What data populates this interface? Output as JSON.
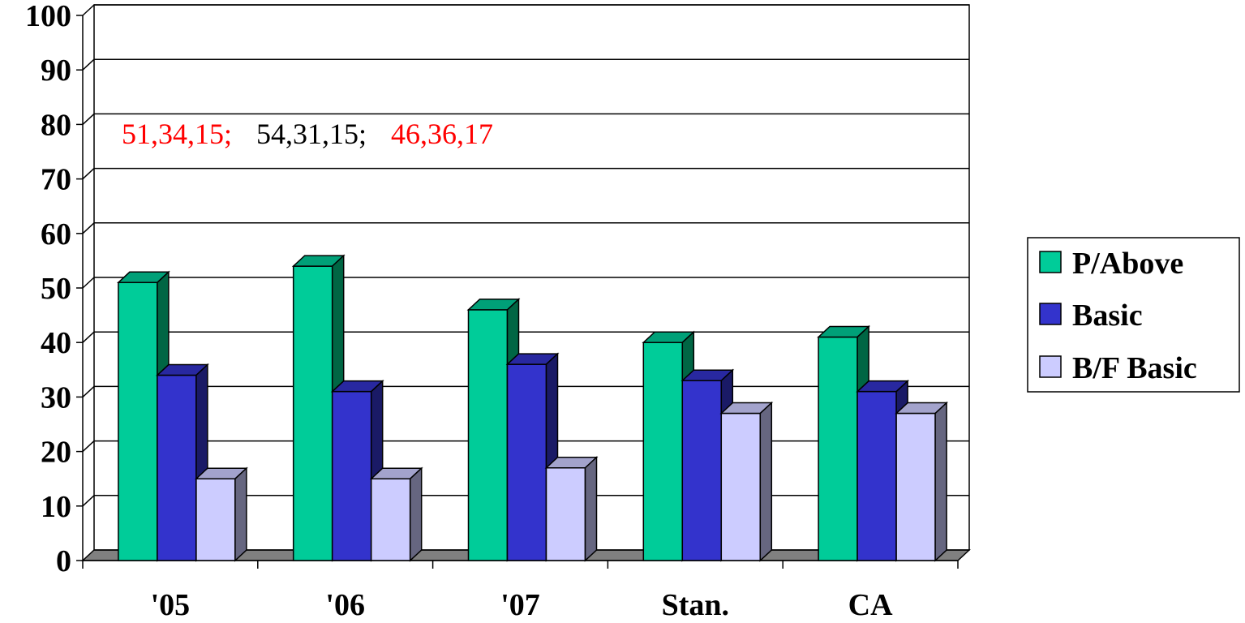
{
  "chart_data": {
    "type": "bar",
    "categories": [
      "'05",
      "'06",
      "'07",
      "Stan.",
      "CA"
    ],
    "series": [
      {
        "name": "P/Above",
        "values": [
          51,
          54,
          46,
          40,
          41
        ],
        "color": "#00CC99",
        "side_color": "#006644",
        "top_color": "#00A078"
      },
      {
        "name": "Basic",
        "values": [
          34,
          31,
          36,
          33,
          31
        ],
        "color": "#3333CC",
        "side_color": "#1A1A66",
        "top_color": "#2828A0"
      },
      {
        "name": "B/F Basic",
        "values": [
          15,
          15,
          17,
          27,
          27
        ],
        "color": "#CCCCFF",
        "side_color": "#666680",
        "top_color": "#A3A3CC"
      }
    ],
    "ylim": [
      0,
      100
    ],
    "yticks": [
      "0",
      "10",
      "20",
      "30",
      "40",
      "50",
      "60",
      "70",
      "80",
      "90",
      "100"
    ],
    "grid": true,
    "legend_position": "right",
    "annotations": [
      {
        "text": "51,34,15;",
        "color": "#FF0000"
      },
      {
        "text": "54,31,15;",
        "color": "#000000"
      },
      {
        "text": "46,36,17",
        "color": "#FF0000"
      }
    ],
    "floor_color": "#808080"
  }
}
